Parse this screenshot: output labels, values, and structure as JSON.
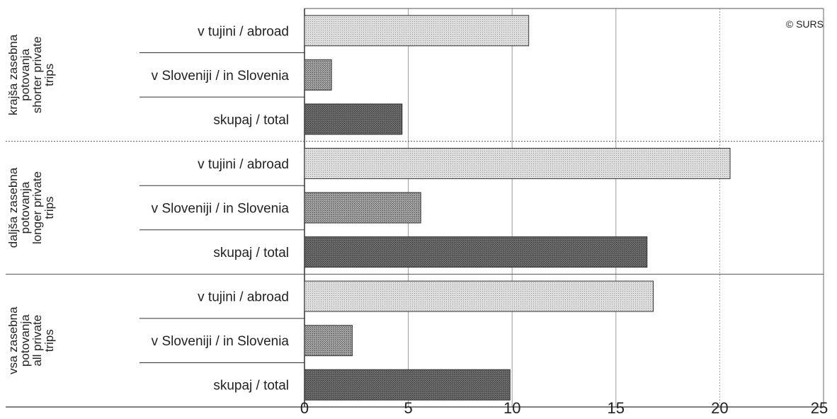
{
  "chart_data": {
    "type": "bar",
    "orientation": "horizontal",
    "copyright": "© SURS",
    "groups": [
      {
        "label_lines": [
          "krajša zasebna",
          "potovanja",
          "shorter private",
          "trips"
        ],
        "categories": [
          "v tujini / abroad",
          "v Sloveniji / in Slovenia",
          "skupaj / total"
        ],
        "values": [
          10.8,
          1.3,
          4.7
        ]
      },
      {
        "label_lines": [
          "daljša zasebna",
          "potovanja",
          "longer private",
          "trips"
        ],
        "categories": [
          "v tujini / abroad",
          "v Sloveniji / in Slovenia",
          "skupaj / total"
        ],
        "values": [
          20.5,
          5.6,
          16.5
        ]
      },
      {
        "label_lines": [
          "vsa zasebna",
          "potovanja",
          "all private",
          "trips"
        ],
        "categories": [
          "v tujini / abroad",
          "v Sloveniji / in Slovenia",
          "skupaj / total"
        ],
        "values": [
          16.8,
          2.3,
          9.9
        ]
      }
    ],
    "xlim": [
      0,
      25
    ],
    "xticks": [
      "0",
      "5",
      "10",
      "15",
      "20",
      "25"
    ],
    "grid": "vertical",
    "colors": {
      "abroad": "#d9d9d9",
      "slovenia": "#9a9a9a",
      "total": "#5f5f5f",
      "outline": "#333333"
    }
  }
}
